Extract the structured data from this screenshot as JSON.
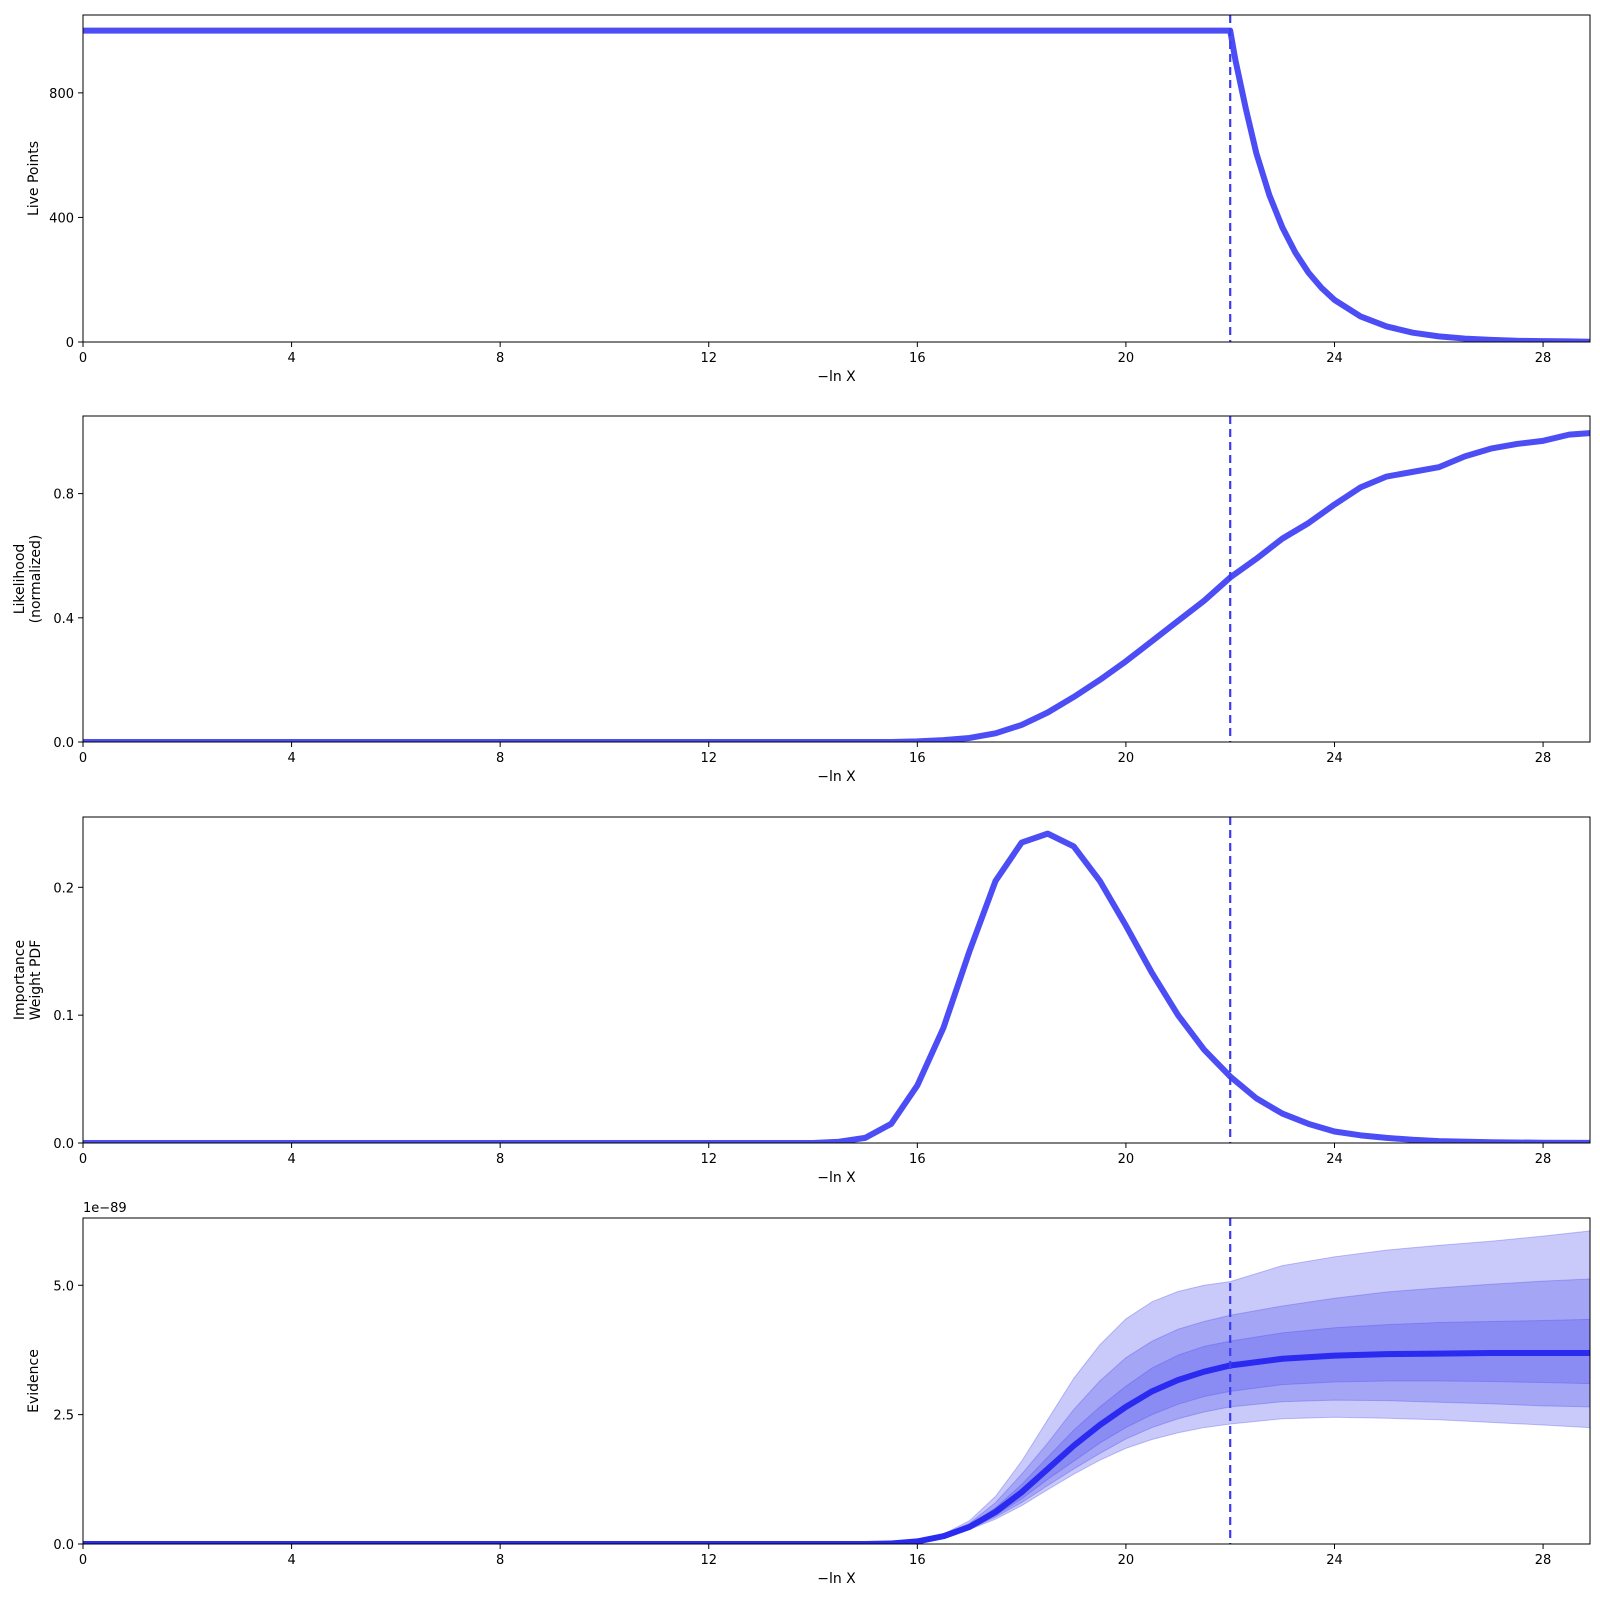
{
  "chart_data": [
    {
      "type": "line",
      "xlabel": "−ln X",
      "ylabel": [
        "Live Points"
      ],
      "xlim": [
        0,
        28.9
      ],
      "ylim": [
        0,
        1050
      ],
      "xticks": [
        0,
        4,
        8,
        12,
        16,
        20,
        24,
        28
      ],
      "yticks": [
        0,
        400,
        800
      ],
      "ytick_labels": [
        "0",
        "400",
        "800"
      ],
      "line_color": "#4d4df5",
      "vline": 22.0,
      "series": [
        {
          "x": [
            0,
            22.0,
            22.1,
            22.3,
            22.5,
            22.75,
            23.0,
            23.25,
            23.5,
            23.75,
            24.0,
            24.5,
            25.0,
            25.5,
            26.0,
            26.5,
            27.0,
            27.5,
            28.0,
            28.5,
            28.9
          ],
          "y": [
            1000,
            1000,
            905,
            749,
            607,
            472,
            368,
            287,
            223,
            174,
            135,
            82,
            50,
            30,
            18,
            11,
            7,
            4,
            3,
            2,
            1
          ]
        }
      ]
    },
    {
      "type": "line",
      "xlabel": "−ln X",
      "ylabel": [
        "Likelihood",
        "(normalized)"
      ],
      "xlim": [
        0,
        28.9
      ],
      "ylim": [
        0,
        1.05
      ],
      "xticks": [
        0,
        4,
        8,
        12,
        16,
        20,
        24,
        28
      ],
      "yticks": [
        0.0,
        0.4,
        0.8
      ],
      "ytick_labels": [
        "0.0",
        "0.4",
        "0.8"
      ],
      "line_color": "#4d4df5",
      "vline": 22.0,
      "series": [
        {
          "x": [
            0,
            15.5,
            16,
            16.5,
            17,
            17.5,
            18,
            18.5,
            19,
            19.5,
            20,
            20.5,
            21,
            21.5,
            22,
            22.5,
            23,
            23.5,
            24,
            24.5,
            25,
            25.5,
            26,
            26.5,
            27,
            27.5,
            28,
            28.5,
            28.9
          ],
          "y": [
            0,
            0,
            0.002,
            0.006,
            0.013,
            0.028,
            0.055,
            0.095,
            0.145,
            0.2,
            0.26,
            0.325,
            0.39,
            0.455,
            0.53,
            0.59,
            0.655,
            0.705,
            0.765,
            0.82,
            0.855,
            0.87,
            0.885,
            0.92,
            0.945,
            0.96,
            0.97,
            0.99,
            0.995
          ]
        }
      ]
    },
    {
      "type": "line",
      "xlabel": "−ln X",
      "ylabel": [
        "Importance",
        "Weight PDF"
      ],
      "xlim": [
        0,
        28.9
      ],
      "ylim": [
        0,
        0.255
      ],
      "xticks": [
        0,
        4,
        8,
        12,
        16,
        20,
        24,
        28
      ],
      "yticks": [
        0.0,
        0.1,
        0.2
      ],
      "ytick_labels": [
        "0.0",
        "0.1",
        "0.2"
      ],
      "line_color": "#4d4df5",
      "vline": 22.0,
      "series": [
        {
          "x": [
            0,
            14.0,
            14.5,
            15.0,
            15.5,
            16.0,
            16.5,
            17.0,
            17.5,
            18.0,
            18.5,
            19.0,
            19.5,
            20.0,
            20.5,
            21.0,
            21.5,
            22.0,
            22.5,
            23.0,
            23.5,
            24.0,
            24.5,
            25.0,
            25.5,
            26.0,
            27.0,
            28.0,
            28.9
          ],
          "y": [
            0,
            0,
            0.001,
            0.004,
            0.015,
            0.045,
            0.09,
            0.15,
            0.205,
            0.235,
            0.242,
            0.232,
            0.205,
            0.17,
            0.133,
            0.1,
            0.073,
            0.052,
            0.035,
            0.023,
            0.015,
            0.009,
            0.006,
            0.004,
            0.0025,
            0.0015,
            0.0006,
            0.0002,
            0.0001
          ]
        }
      ]
    },
    {
      "type": "area",
      "xlabel": "−ln X",
      "ylabel": [
        "Evidence"
      ],
      "offset_label": "1e−89",
      "xlim": [
        0,
        28.9
      ],
      "ylim": [
        0,
        6.3
      ],
      "xticks": [
        0,
        4,
        8,
        12,
        16,
        20,
        24,
        28
      ],
      "yticks": [
        0.0,
        2.5,
        5.0
      ],
      "ytick_labels": [
        "0.0",
        "2.5",
        "5.0"
      ],
      "line_color": "#2a2af0",
      "band_color": "#5050f0",
      "vline": 22.0,
      "x": [
        0,
        15.0,
        15.5,
        16.0,
        16.5,
        17.0,
        17.5,
        18.0,
        18.5,
        19.0,
        19.5,
        20.0,
        20.5,
        21.0,
        21.5,
        22.0,
        23.0,
        24.0,
        25.0,
        26.0,
        27.0,
        28.0,
        28.9
      ],
      "series": [
        {
          "name": "median",
          "values": [
            0,
            0,
            0.01,
            0.05,
            0.15,
            0.33,
            0.62,
            1.0,
            1.45,
            1.9,
            2.3,
            2.65,
            2.95,
            3.17,
            3.33,
            3.45,
            3.58,
            3.64,
            3.67,
            3.68,
            3.69,
            3.69,
            3.69
          ]
        }
      ],
      "bands": [
        {
          "sigma": 3,
          "upper": [
            0,
            0,
            0.012,
            0.06,
            0.19,
            0.45,
            0.92,
            1.6,
            2.4,
            3.2,
            3.85,
            4.35,
            4.68,
            4.88,
            5.0,
            5.07,
            5.38,
            5.55,
            5.68,
            5.77,
            5.85,
            5.95,
            6.05
          ],
          "lower": [
            0,
            0,
            0.008,
            0.04,
            0.12,
            0.28,
            0.48,
            0.74,
            1.05,
            1.35,
            1.62,
            1.85,
            2.02,
            2.15,
            2.25,
            2.32,
            2.42,
            2.45,
            2.43,
            2.4,
            2.35,
            2.3,
            2.25
          ]
        },
        {
          "sigma": 2,
          "upper": [
            0,
            0,
            0.011,
            0.055,
            0.17,
            0.4,
            0.8,
            1.35,
            1.95,
            2.6,
            3.15,
            3.6,
            3.92,
            4.15,
            4.3,
            4.42,
            4.6,
            4.75,
            4.87,
            4.95,
            5.02,
            5.08,
            5.12
          ]
        },
        {
          "sigma": 1,
          "upper": [
            0,
            0,
            0.01,
            0.05,
            0.16,
            0.36,
            0.7,
            1.15,
            1.68,
            2.2,
            2.65,
            3.05,
            3.4,
            3.65,
            3.82,
            3.92,
            4.08,
            4.18,
            4.24,
            4.28,
            4.3,
            4.32,
            4.34
          ],
          "lower": [
            0,
            0,
            0.009,
            0.045,
            0.14,
            0.3,
            0.55,
            0.87,
            1.25,
            1.6,
            1.95,
            2.25,
            2.5,
            2.7,
            2.85,
            2.95,
            3.08,
            3.13,
            3.15,
            3.15,
            3.14,
            3.12,
            3.1
          ]
        },
        {
          "sigma": 2,
          "lower": [
            0,
            0,
            0.0085,
            0.042,
            0.13,
            0.29,
            0.52,
            0.8,
            1.13,
            1.45,
            1.75,
            2.03,
            2.25,
            2.42,
            2.55,
            2.65,
            2.75,
            2.78,
            2.77,
            2.74,
            2.71,
            2.67,
            2.65
          ]
        }
      ]
    }
  ]
}
